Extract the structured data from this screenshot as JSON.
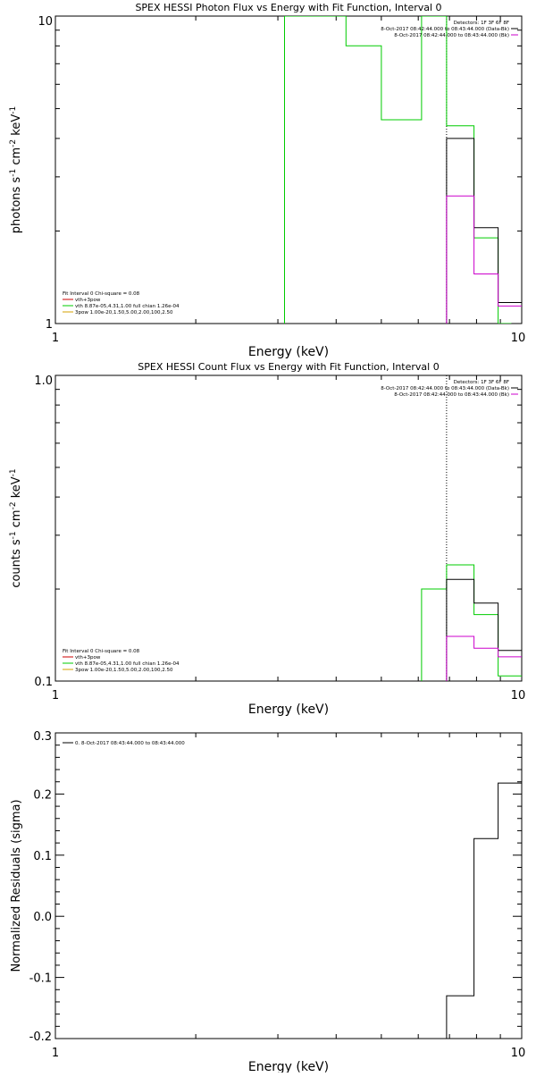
{
  "chart_data": [
    {
      "type": "line",
      "title": "SPEX HESSI Photon Flux vs Energy with Fit Function, Interval 0",
      "xlabel": "Energy (keV)",
      "ylabel": "photons s⁻¹ cm⁻² keV⁻¹",
      "ylabel_parts": [
        "photons s",
        "-1",
        " cm",
        "-2",
        " keV",
        "-1"
      ],
      "xscale": "log",
      "yscale": "log",
      "xlim": [
        1,
        10
      ],
      "ylim": [
        1,
        10
      ],
      "xticklabels": [
        "1",
        "10"
      ],
      "yticklabels": [
        "1",
        "10"
      ],
      "vline": 6.9,
      "legend_right": {
        "lines": [
          "Detectors: 1F 3F 6F 8F",
          "8-Oct-2017 08:42:44.000 to 08:43:44.000 (Data-Bk)",
          "8-Oct-2017 08:42:44.000 to 08:43:44.000 (Bk)"
        ],
        "colors": [
          "#000000",
          "#000000",
          "#cc00cc"
        ]
      },
      "legend_left": {
        "lines": [
          "Fit Interval 0   Chi-square = 0.08",
          "vth+3pow",
          "vth 8.87e-05,4.31,1.00  full chian 1.26e-04",
          "3pow 1.00e-20,1.50,5.00,2.00,100,2.50"
        ],
        "colors": [
          "#000000",
          "#cc0000",
          "#00cc00",
          "#d4a000"
        ]
      },
      "series": [
        {
          "color": "#00cc00",
          "x": [
            3.1,
            3.1,
            4.2,
            4.2,
            5.0,
            5.0,
            6.1,
            6.1,
            6.9,
            6.9,
            7.9,
            7.9,
            8.9,
            8.9,
            9.5
          ],
          "y": [
            1,
            10,
            10,
            8,
            8,
            4.6,
            4.6,
            10,
            10,
            4.4,
            4.4,
            1.9,
            1.9,
            1,
            1
          ]
        },
        {
          "color": "#000000",
          "x": [
            6.9,
            6.9,
            7.9,
            7.9,
            8.9,
            8.9,
            10
          ],
          "y": [
            1,
            4.0,
            4.0,
            2.05,
            2.05,
            1.17,
            1.17
          ]
        },
        {
          "color": "#cc00cc",
          "x": [
            6.9,
            6.9,
            7.9,
            7.9,
            8.9,
            8.9,
            10
          ],
          "y": [
            1,
            2.6,
            2.6,
            1.45,
            1.45,
            1.14,
            1.14
          ]
        }
      ]
    },
    {
      "type": "line",
      "title": "SPEX HESSI Count Flux vs Energy with Fit Function, Interval 0",
      "xlabel": "Energy (keV)",
      "ylabel": "counts s⁻¹ cm⁻² keV⁻¹",
      "ylabel_parts": [
        "counts s",
        "-1",
        " cm",
        "-2",
        " keV",
        "-1"
      ],
      "xscale": "log",
      "yscale": "log",
      "xlim": [
        1,
        10
      ],
      "ylim": [
        0.1,
        1.0
      ],
      "xticklabels": [
        "1",
        "10"
      ],
      "yticklabels": [
        "0.1",
        "1.0"
      ],
      "vline": 6.9,
      "legend_right": {
        "lines": [
          "Detectors: 1F 3F 6F 8F",
          "8-Oct-2017 08:42:44.000 to 08:43:44.000 (Data-Bk)",
          "8-Oct-2017 08:42:44.000 to 08:43:44.000 (Bk)"
        ],
        "colors": [
          "#000000",
          "#000000",
          "#cc00cc"
        ]
      },
      "legend_left": {
        "lines": [
          "Fit Interval 0   Chi-square = 0.08",
          "vth+3pow",
          "vth 8.87e-05,4.31,1.00  full chian 1.26e-04",
          "3pow 1.00e-20,1.50,5.00,2.00,100,2.50"
        ],
        "colors": [
          "#000000",
          "#cc0000",
          "#00cc00",
          "#d4a000"
        ]
      },
      "series": [
        {
          "color": "#00cc00",
          "x": [
            6.1,
            6.1,
            6.9,
            6.9,
            7.9,
            7.9,
            8.9,
            8.9,
            10
          ],
          "y": [
            0.1,
            0.2,
            0.2,
            0.24,
            0.24,
            0.165,
            0.165,
            0.104,
            0.104
          ]
        },
        {
          "color": "#000000",
          "x": [
            6.9,
            6.9,
            7.9,
            7.9,
            8.9,
            8.9,
            10
          ],
          "y": [
            0.1,
            0.215,
            0.215,
            0.18,
            0.18,
            0.126,
            0.126
          ]
        },
        {
          "color": "#cc00cc",
          "x": [
            6.9,
            6.9,
            7.9,
            7.9,
            8.9,
            8.9,
            10
          ],
          "y": [
            0.1,
            0.14,
            0.14,
            0.128,
            0.128,
            0.12,
            0.12
          ]
        }
      ]
    },
    {
      "type": "line",
      "title": "",
      "xlabel": "Energy (keV)",
      "ylabel": "Normalized Residuals (sigma)",
      "xscale": "log",
      "yscale": "linear",
      "xlim": [
        1,
        10
      ],
      "ylim": [
        -0.2,
        0.3
      ],
      "xticklabels": [
        "1",
        "10"
      ],
      "yticks": [
        -0.2,
        -0.1,
        0.0,
        0.1,
        0.2,
        0.3
      ],
      "yticklabels": [
        "-0.2",
        "-0.1",
        "0.0",
        "0.1",
        "0.2",
        "0.3"
      ],
      "legend_left": {
        "lines": [
          "0.  8-Oct-2017 08:43:44.000 to 08:43:44.000"
        ],
        "colors": [
          "#000000"
        ]
      },
      "series": [
        {
          "color": "#000000",
          "x": [
            6.9,
            6.9,
            7.9,
            7.9,
            8.9,
            8.9,
            10
          ],
          "y": [
            -0.2,
            -0.13,
            -0.13,
            0.127,
            0.127,
            0.218,
            0.218
          ]
        }
      ]
    }
  ]
}
